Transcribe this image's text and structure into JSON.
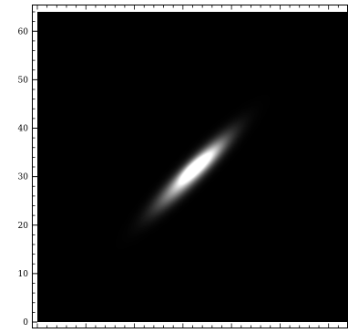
{
  "chart_data": {
    "type": "heatmap",
    "title": "",
    "xlabel": "",
    "ylabel": "",
    "xlim": [
      0,
      64
    ],
    "ylim": [
      0,
      64
    ],
    "yticks": [
      0,
      10,
      20,
      30,
      40,
      50,
      60
    ],
    "ytick_labels": [
      "0",
      "10",
      "20",
      "30",
      "40",
      "50",
      "60"
    ],
    "xticks": [],
    "xtick_labels": [],
    "grid": false,
    "legend": "none",
    "background_color": "#000000",
    "colormap": "grayscale",
    "feature": {
      "shape": "elongated gaussian streak",
      "center": [
        32,
        31
      ],
      "angle_degrees": 45,
      "sigma_major": 6,
      "sigma_minor": 1.2,
      "peak_intensity": 1.0,
      "inner_center_offset": [
        -0.3,
        0.4
      ],
      "inner_sigma_major": 2.4,
      "inner_sigma_minor": 0.75,
      "inner_peak_intensity": 0.55,
      "secondary_offset": [
        2.6,
        2.4
      ],
      "secondary_sigma_major": 3,
      "secondary_sigma_minor": 0.9,
      "secondary_intensity": 0.35
    }
  }
}
